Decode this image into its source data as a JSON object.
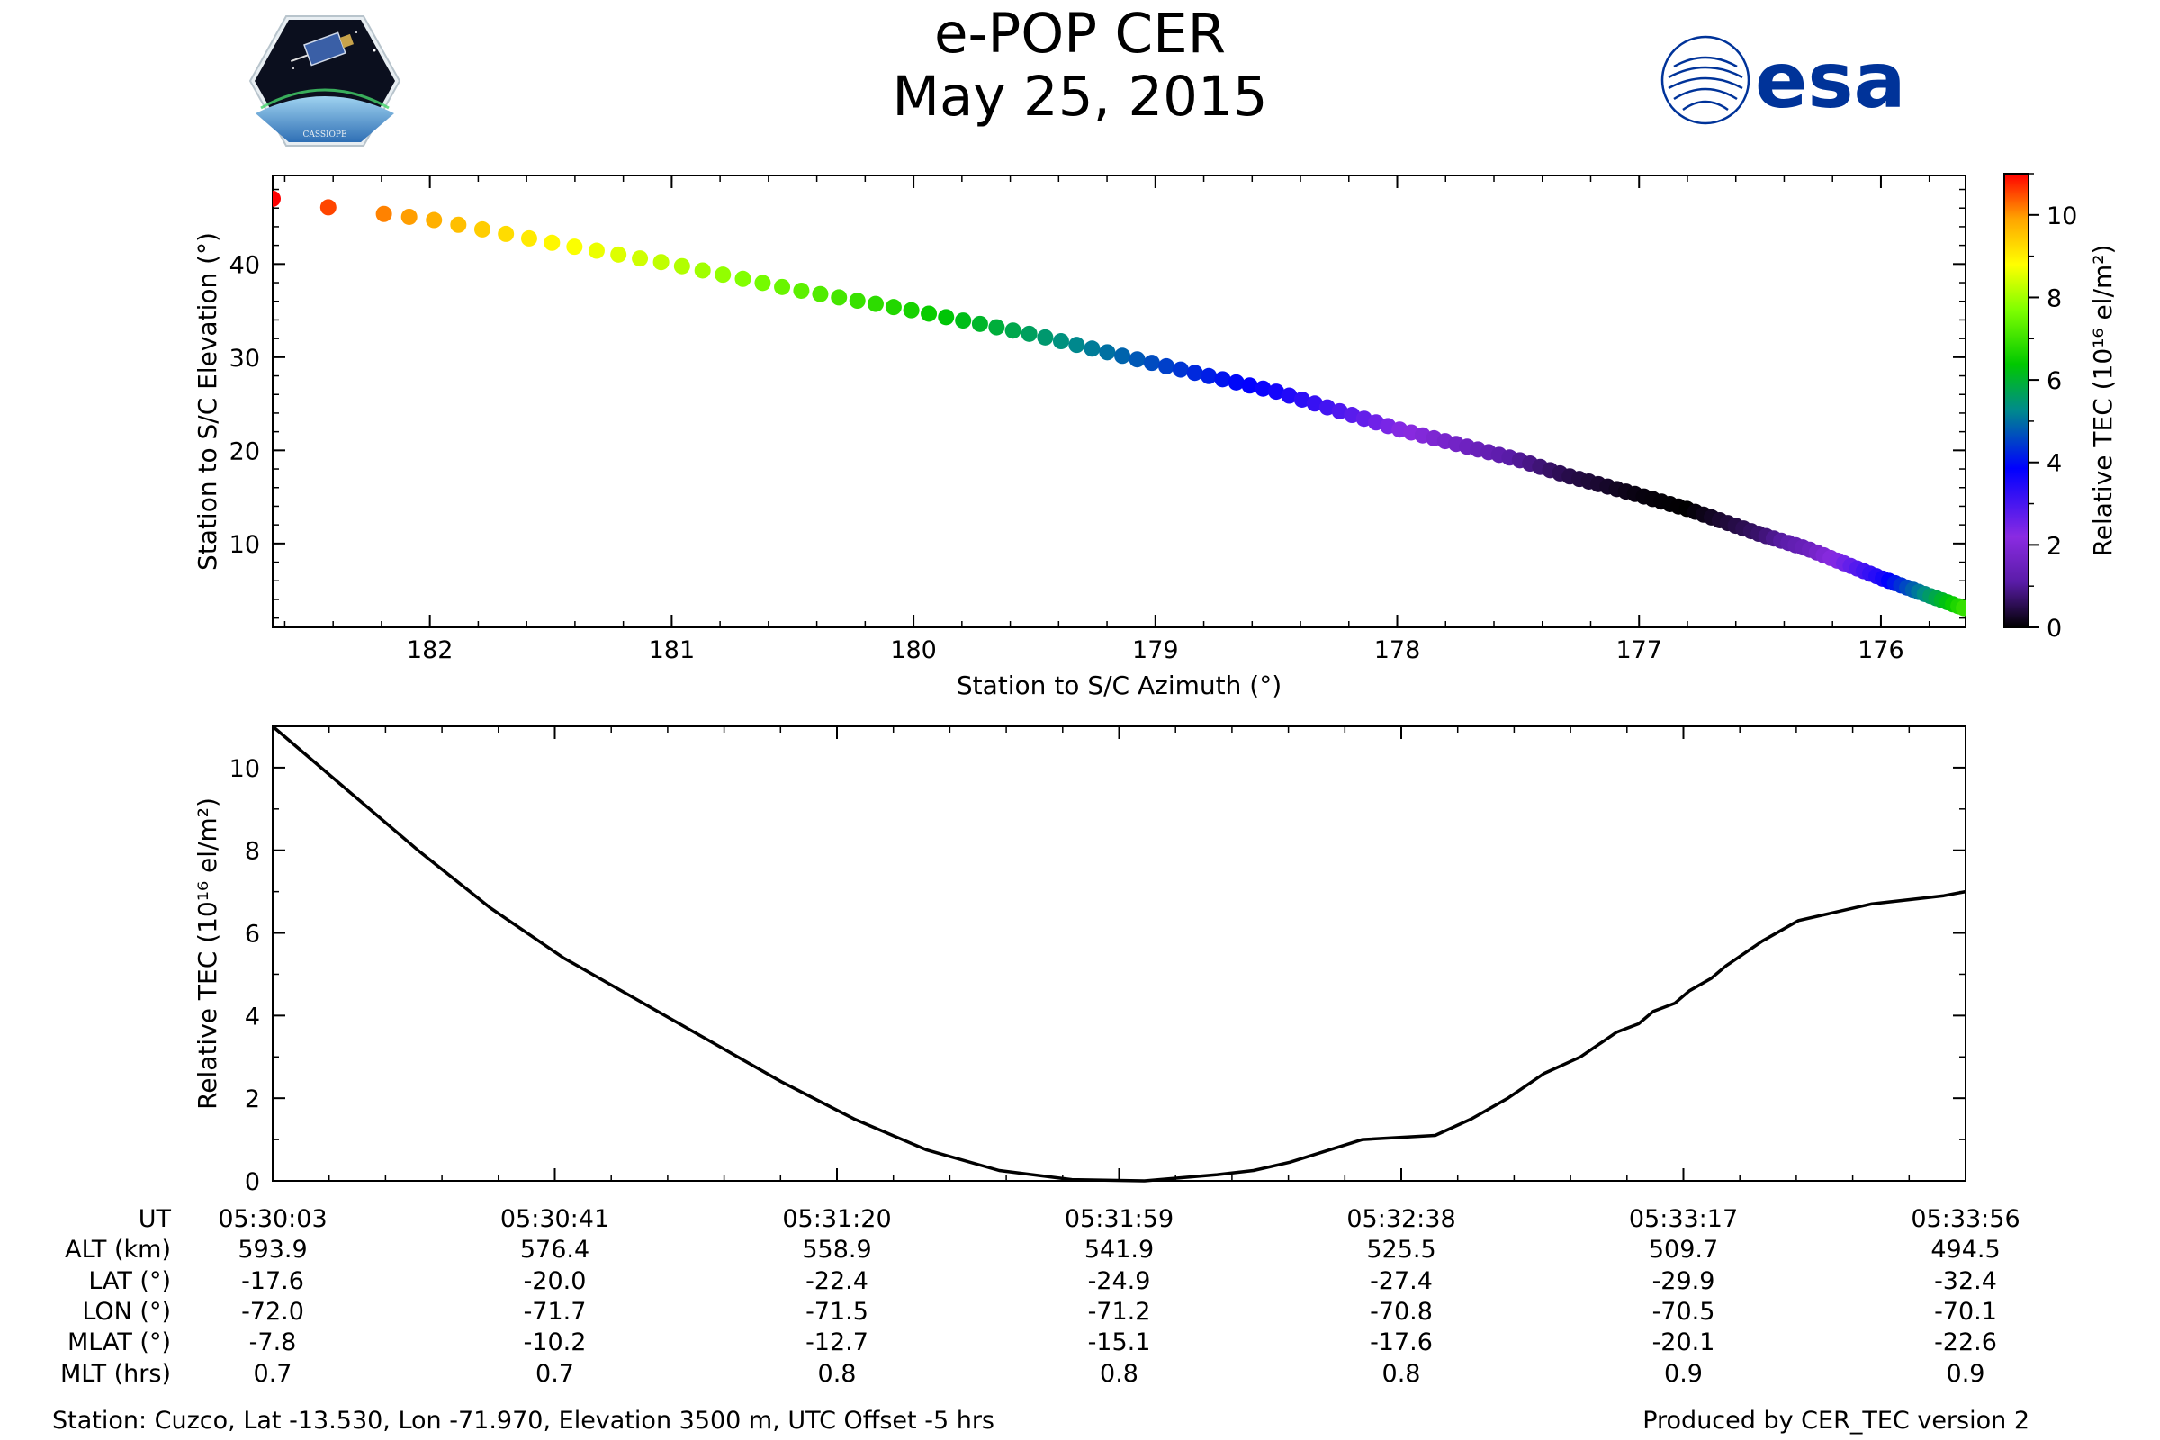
{
  "header": {
    "title": "e-POP CER",
    "date": "May 25, 2015",
    "left_logo_text": "CASSIOPE",
    "right_logo_text": "esa"
  },
  "colors": {
    "esa_blue": "#003399",
    "curve": "#000000",
    "background": "#ffffff"
  },
  "chart_data": [
    {
      "type": "scatter",
      "name": "sky-track",
      "xlabel": "Station to S/C Azimuth (°)",
      "ylabel": "Station to S/C Elevation (°)",
      "xlim": [
        182.65,
        175.65
      ],
      "ylim": [
        1,
        49.5
      ],
      "x_ticks": [
        182,
        181,
        180,
        179,
        178,
        177,
        176
      ],
      "y_ticks": [
        10,
        20,
        30,
        40
      ],
      "color_by": "Relative TEC",
      "colorbar": {
        "label": "Relative TEC (10¹⁶ el/m²)",
        "range": [
          0,
          11
        ],
        "ticks": [
          0,
          2,
          4,
          6,
          8,
          10
        ]
      },
      "track_points": [
        {
          "az": 182.65,
          "el": 47.0,
          "tec": 11.0
        },
        {
          "az": 182.4,
          "el": 46.0,
          "tec": 10.5
        },
        {
          "az": 182.0,
          "el": 44.8,
          "tec": 9.8
        },
        {
          "az": 181.5,
          "el": 42.3,
          "tec": 8.9
        },
        {
          "az": 181.0,
          "el": 40.0,
          "tec": 8.2
        },
        {
          "az": 180.5,
          "el": 37.3,
          "tec": 7.4
        },
        {
          "az": 180.0,
          "el": 35.0,
          "tec": 6.6
        },
        {
          "az": 179.5,
          "el": 32.4,
          "tec": 5.6
        },
        {
          "az": 179.0,
          "el": 29.3,
          "tec": 4.6
        },
        {
          "az": 178.5,
          "el": 26.3,
          "tec": 3.6
        },
        {
          "az": 178.0,
          "el": 22.3,
          "tec": 2.3
        },
        {
          "az": 177.5,
          "el": 19.0,
          "tec": 1.0
        },
        {
          "az": 177.3,
          "el": 17.3,
          "tec": 0.5
        },
        {
          "az": 177.0,
          "el": 15.2,
          "tec": 0.1
        },
        {
          "az": 176.8,
          "el": 13.7,
          "tec": 0.0
        },
        {
          "az": 176.5,
          "el": 11.0,
          "tec": 0.7
        },
        {
          "az": 176.3,
          "el": 9.4,
          "tec": 1.5
        },
        {
          "az": 176.0,
          "el": 6.3,
          "tec": 3.5
        },
        {
          "az": 175.8,
          "el": 4.4,
          "tec": 5.5
        },
        {
          "az": 175.65,
          "el": 3.0,
          "tec": 7.0
        }
      ]
    },
    {
      "type": "line",
      "name": "relative-tec-vs-time",
      "ylabel": "Relative TEC (10¹⁶ el/m²)",
      "xlim": [
        0,
        233
      ],
      "ylim": [
        0,
        11
      ],
      "y_ticks": [
        0,
        2,
        4,
        6,
        8,
        10
      ],
      "x_unit": "seconds since 05:30:03",
      "series": [
        {
          "name": "Relative TEC",
          "x": [
            0,
            10,
            20,
            30,
            40,
            50,
            60,
            70,
            80,
            90,
            100,
            110,
            120,
            130,
            135,
            140,
            150,
            160,
            165,
            170,
            175,
            180,
            185,
            188,
            190,
            193,
            195,
            198,
            200,
            205,
            210,
            220,
            230,
            233
          ],
          "y": [
            11.0,
            9.5,
            8.0,
            6.6,
            5.4,
            4.4,
            3.4,
            2.4,
            1.5,
            0.75,
            0.25,
            0.03,
            0.0,
            0.15,
            0.25,
            0.45,
            1.0,
            1.1,
            1.5,
            2.0,
            2.6,
            3.0,
            3.6,
            3.8,
            4.1,
            4.3,
            4.6,
            4.9,
            5.2,
            5.8,
            6.3,
            6.7,
            6.9,
            7.0
          ]
        }
      ]
    }
  ],
  "info_table": {
    "row_labels": [
      "UT",
      "ALT (km)",
      "LAT (°)",
      "LON (°)",
      "MLAT (°)",
      "MLT (hrs)"
    ],
    "columns": [
      {
        "ut": "05:30:03",
        "alt": "593.9",
        "lat": "-17.6",
        "lon": "-72.0",
        "mlat": "-7.8",
        "mlt": "0.7"
      },
      {
        "ut": "05:30:41",
        "alt": "576.4",
        "lat": "-20.0",
        "lon": "-71.7",
        "mlat": "-10.2",
        "mlt": "0.7"
      },
      {
        "ut": "05:31:20",
        "alt": "558.9",
        "lat": "-22.4",
        "lon": "-71.5",
        "mlat": "-12.7",
        "mlt": "0.8"
      },
      {
        "ut": "05:31:59",
        "alt": "541.9",
        "lat": "-24.9",
        "lon": "-71.2",
        "mlat": "-15.1",
        "mlt": "0.8"
      },
      {
        "ut": "05:32:38",
        "alt": "525.5",
        "lat": "-27.4",
        "lon": "-70.8",
        "mlat": "-17.6",
        "mlt": "0.8"
      },
      {
        "ut": "05:33:17",
        "alt": "509.7",
        "lat": "-29.9",
        "lon": "-70.5",
        "mlat": "-20.1",
        "mlt": "0.9"
      },
      {
        "ut": "05:33:56",
        "alt": "494.5",
        "lat": "-32.4",
        "lon": "-70.1",
        "mlat": "-22.6",
        "mlt": "0.9"
      }
    ]
  },
  "footer": {
    "station": "Station: Cuzco, Lat -13.530, Lon -71.970, Elevation 3500 m, UTC Offset -5 hrs",
    "produced_by": "Produced by CER_TEC version 2"
  }
}
